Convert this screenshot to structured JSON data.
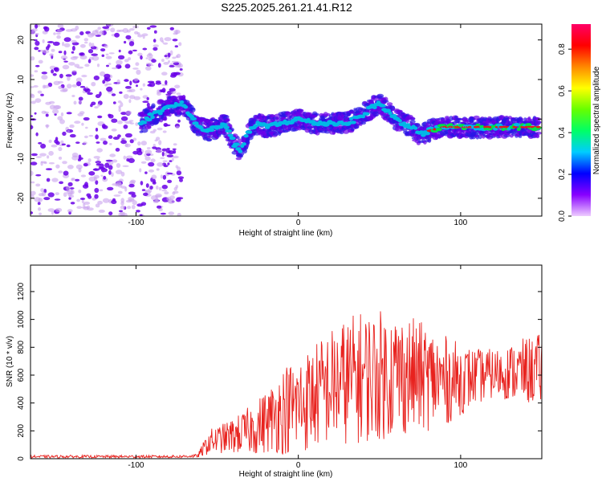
{
  "figure_title": "S225.2025.261.21.41.R12",
  "colors": {
    "snr_line": "#e8221e",
    "points_dense": "#6a00e8",
    "points_light": "#c9a4ef",
    "ridge_mid": "#00b8e6",
    "ridge_high": "#00e04a",
    "ridge_peak": "#e81818"
  },
  "chart_data": [
    {
      "type": "scatter",
      "name": "spectrogram",
      "title": "S225.2025.261.21.41.R12",
      "xlabel": "Height of straight line (km)",
      "ylabel": "Frequency (Hz)",
      "xlim": [
        -165,
        150
      ],
      "ylim": [
        -24.5,
        24
      ],
      "xticks": [
        -100,
        0,
        100
      ],
      "yticks": [
        -20,
        -10,
        0,
        10,
        20
      ],
      "x_tick_labels": [
        "-100",
        "0",
        "100"
      ],
      "y_tick_labels": [
        "-20",
        "-10",
        "0",
        "10",
        "20"
      ],
      "noise_region_x": [
        -165,
        -72
      ],
      "ridge": {
        "x": [
          -97,
          -90,
          -80,
          -72,
          -68,
          -62,
          -55,
          -50,
          -45,
          -40,
          -36,
          -30,
          -25,
          -20,
          -10,
          0,
          10,
          20,
          30,
          40,
          45,
          50,
          55,
          60,
          65,
          70,
          75,
          80,
          90,
          100,
          110,
          120,
          130,
          140,
          148
        ],
        "y": [
          -1,
          1,
          3,
          4,
          2,
          -2,
          -3,
          -2,
          -1,
          -6,
          -8,
          -3,
          -1,
          -2,
          -1,
          0,
          -1,
          -1,
          -1,
          1,
          3,
          4,
          2,
          0,
          -1,
          -2,
          -4,
          -3,
          -2,
          -2,
          -2,
          -2,
          -2,
          -2,
          -2
        ]
      },
      "colorbar": {
        "label": "Normalized spectral amplitude",
        "range": [
          0.0,
          0.92
        ],
        "ticks": [
          0.0,
          0.2,
          0.4,
          0.6,
          0.8
        ],
        "tick_labels": [
          "0.0",
          "0.2",
          "0.4",
          "0.6",
          "0.8"
        ],
        "stops": [
          "#eeccff",
          "#8800ff",
          "#0000ff",
          "#00ccff",
          "#00ff66",
          "#66ff00",
          "#ffff00",
          "#ff8800",
          "#ff0000",
          "#ff0066"
        ]
      }
    },
    {
      "type": "line",
      "name": "snr",
      "xlabel": "Height of straight line (km)",
      "ylabel": "SNR (10 * v/v)",
      "xlim": [
        -165,
        150
      ],
      "ylim": [
        0,
        1390
      ],
      "xticks": [
        -100,
        0,
        100
      ],
      "yticks": [
        0,
        200,
        400,
        600,
        800,
        1000,
        1200
      ],
      "x_tick_labels": [
        "-100",
        "0",
        "100"
      ],
      "y_tick_labels": [
        "0",
        "200",
        "400",
        "600",
        "800",
        "1000",
        "1200"
      ],
      "envelope": {
        "x": [
          -165,
          -75,
          -62,
          -55,
          -45,
          -35,
          -25,
          -15,
          -10,
          0,
          10,
          20,
          30,
          40,
          50,
          60,
          70,
          80,
          90,
          100,
          110,
          120,
          130,
          140,
          150
        ],
        "center": [
          15,
          15,
          20,
          120,
          150,
          180,
          230,
          300,
          350,
          380,
          450,
          520,
          560,
          590,
          600,
          610,
          600,
          580,
          560,
          570,
          590,
          610,
          620,
          630,
          640
        ],
        "amplitude": [
          10,
          10,
          12,
          90,
          110,
          150,
          200,
          260,
          320,
          360,
          380,
          420,
          460,
          480,
          470,
          460,
          420,
          380,
          330,
          260,
          200,
          180,
          200,
          240,
          260
        ]
      }
    }
  ]
}
